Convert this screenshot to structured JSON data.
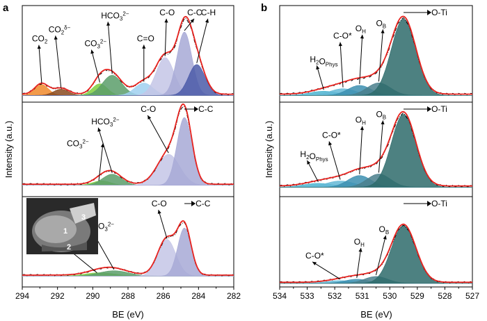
{
  "figure": {
    "panels": [
      {
        "letter": "a",
        "ylabel": "Intensity (a.u.)",
        "xlabel": "BE (eV)"
      },
      {
        "letter": "b",
        "ylabel": "Intensity (a.u.)",
        "xlabel": "BE (eV)"
      }
    ],
    "inset_labels": [
      "1",
      "2",
      "3"
    ]
  },
  "colors": {
    "envelope": "#e8231f",
    "raw": "#000000",
    "co2": "#f08a2b",
    "co2_delta": "#8a4a1e",
    "co3": "#7fcf3e",
    "hco3": "#5a9e6a",
    "c_eq_o": "#9fd0f0",
    "c_o": "#c4c6e6",
    "c_c": "#a7a9d6",
    "c_h": "#4b5aa8",
    "o_ti": "#2e6b6b",
    "o_b": "#4a7f8c",
    "o_h": "#3c8fb0",
    "c_o_star": "#64b8d6",
    "h2o": "#4cb5d0"
  },
  "chart_data": [
    {
      "type": "area",
      "id": "a-top",
      "panel": "a",
      "xlabel": "BE (eV)",
      "ylabel": "Intensity (a.u.)",
      "xlim": [
        294,
        282
      ],
      "xticks": [
        294,
        292,
        290,
        288,
        286,
        284,
        282
      ],
      "x_reversed": true,
      "series": [
        {
          "name": "CO2",
          "label_parts": [
            [
              "CO",
              ""
            ],
            [
              "2",
              "sub"
            ]
          ],
          "center": 292.9,
          "height": 0.14,
          "fwhm": 0.9,
          "color_key": "co2"
        },
        {
          "name": "CO2δ-",
          "label_parts": [
            [
              "CO",
              ""
            ],
            [
              "2",
              "sub"
            ],
            [
              "δ−",
              "sup"
            ]
          ],
          "center": 291.8,
          "height": 0.08,
          "fwhm": 1.0,
          "color_key": "co2_delta"
        },
        {
          "name": "CO32-",
          "label_parts": [
            [
              "CO",
              ""
            ],
            [
              "3",
              "sub"
            ],
            [
              "2−",
              "sup"
            ]
          ],
          "center": 289.6,
          "height": 0.15,
          "fwhm": 1.0,
          "color_key": "co3"
        },
        {
          "name": "HCO32-",
          "label_parts": [
            [
              "HCO",
              ""
            ],
            [
              "3",
              "sub"
            ],
            [
              "2−",
              "sup"
            ]
          ],
          "center": 288.9,
          "height": 0.26,
          "fwhm": 1.3,
          "color_key": "hco3"
        },
        {
          "name": "C=O",
          "label_parts": [
            [
              "C=O",
              ""
            ]
          ],
          "center": 287.1,
          "height": 0.16,
          "fwhm": 1.2,
          "color_key": "c_eq_o"
        },
        {
          "name": "C-O",
          "label_parts": [
            [
              "C-O",
              ""
            ]
          ],
          "center": 285.9,
          "height": 0.49,
          "fwhm": 1.2,
          "color_key": "c_o"
        },
        {
          "name": "C-C",
          "label_parts": [
            [
              "C-C",
              ""
            ]
          ],
          "center": 284.8,
          "height": 0.82,
          "fwhm": 1.0,
          "color_key": "c_c"
        },
        {
          "name": "C-H",
          "label_parts": [
            [
              "C-H",
              ""
            ]
          ],
          "center": 284.1,
          "height": 0.4,
          "fwhm": 1.1,
          "color_key": "c_h"
        }
      ]
    },
    {
      "type": "area",
      "id": "a-mid",
      "panel": "a",
      "xlim": [
        294,
        282
      ],
      "x_reversed": true,
      "series": [
        {
          "name": "CO32-",
          "label_parts": [
            [
              "CO",
              ""
            ],
            [
              "3",
              "sub"
            ],
            [
              "2−",
              "sup"
            ]
          ],
          "center": 289.5,
          "height": 0.06,
          "fwhm": 1.2,
          "color_key": "co3"
        },
        {
          "name": "HCO32-",
          "label_parts": [
            [
              "HCO",
              ""
            ],
            [
              "3",
              "sub"
            ],
            [
              "2−",
              "sup"
            ]
          ],
          "center": 288.9,
          "height": 0.15,
          "fwhm": 1.3,
          "color_key": "hco3"
        },
        {
          "name": "C-O",
          "label_parts": [
            [
              "C-O",
              ""
            ]
          ],
          "center": 285.7,
          "height": 0.42,
          "fwhm": 1.5,
          "color_key": "c_o"
        },
        {
          "name": "C-C",
          "label_parts": [
            [
              "C-C",
              ""
            ]
          ],
          "center": 284.8,
          "height": 0.92,
          "fwhm": 1.0,
          "color_key": "c_c"
        }
      ]
    },
    {
      "type": "area",
      "id": "a-bot",
      "panel": "a",
      "xlim": [
        294,
        282
      ],
      "x_reversed": true,
      "series": [
        {
          "name": "CO32-",
          "label_parts": [
            [
              "CO",
              ""
            ],
            [
              "3",
              "sub"
            ],
            [
              "2−",
              "sup"
            ]
          ],
          "center": 289.6,
          "height": 0.05,
          "fwhm": 2.0,
          "color_key": "co3"
        },
        {
          "name": "HCO32-",
          "label_parts": [
            [
              "HCO",
              ""
            ],
            [
              "3",
              "sub"
            ],
            [
              "2−",
              "sup"
            ]
          ],
          "center": 288.8,
          "height": 0.08,
          "fwhm": 2.0,
          "color_key": "hco3"
        },
        {
          "name": "C-O",
          "label_parts": [
            [
              "C-O",
              ""
            ]
          ],
          "center": 285.8,
          "height": 0.55,
          "fwhm": 1.2,
          "color_key": "c_o"
        },
        {
          "name": "C-C",
          "label_parts": [
            [
              "C-C",
              ""
            ]
          ],
          "center": 284.8,
          "height": 0.72,
          "fwhm": 0.9,
          "color_key": "c_c"
        }
      ]
    },
    {
      "type": "area",
      "id": "b-top",
      "panel": "b",
      "xlabel": "BE (eV)",
      "ylabel": "Intensity (a.u.)",
      "xlim": [
        534,
        527
      ],
      "xticks": [
        534,
        533,
        532,
        531,
        530,
        529,
        528,
        527
      ],
      "x_reversed": true,
      "series": [
        {
          "name": "H2OPhys",
          "label_parts": [
            [
              "H",
              ""
            ],
            [
              "2",
              "sub"
            ],
            [
              "O",
              ""
            ],
            [
              "Phys",
              "sub"
            ]
          ],
          "center": 532.4,
          "height": 0.05,
          "fwhm": 1.2,
          "color_key": "h2o"
        },
        {
          "name": "C-O*",
          "label_parts": [
            [
              "C-O*",
              ""
            ]
          ],
          "center": 531.7,
          "height": 0.08,
          "fwhm": 1.1,
          "color_key": "c_o_star"
        },
        {
          "name": "OH",
          "label_parts": [
            [
              "O",
              ""
            ],
            [
              "H",
              "sub"
            ]
          ],
          "center": 531.1,
          "height": 0.12,
          "fwhm": 1.0,
          "color_key": "o_h"
        },
        {
          "name": "OB",
          "label_parts": [
            [
              "O",
              ""
            ],
            [
              "B",
              "sub"
            ]
          ],
          "center": 530.4,
          "height": 0.15,
          "fwhm": 1.0,
          "color_key": "o_b"
        },
        {
          "name": "O-Ti",
          "label_parts": [
            [
              "O-Ti",
              ""
            ]
          ],
          "center": 529.5,
          "height": 0.92,
          "fwhm": 1.05,
          "color_key": "o_ti"
        }
      ]
    },
    {
      "type": "area",
      "id": "b-mid",
      "panel": "b",
      "xlim": [
        534,
        527
      ],
      "x_reversed": true,
      "series": [
        {
          "name": "H2OPhys",
          "label_parts": [
            [
              "H",
              ""
            ],
            [
              "2",
              "sub"
            ],
            [
              "O",
              ""
            ],
            [
              "Phys",
              "sub"
            ]
          ],
          "center": 532.6,
          "height": 0.05,
          "fwhm": 1.3,
          "color_key": "h2o"
        },
        {
          "name": "C-O*",
          "label_parts": [
            [
              "C-O*",
              ""
            ]
          ],
          "center": 531.8,
          "height": 0.08,
          "fwhm": 1.2,
          "color_key": "c_o_star"
        },
        {
          "name": "OH",
          "label_parts": [
            [
              "O",
              ""
            ],
            [
              "H",
              "sub"
            ]
          ],
          "center": 531.1,
          "height": 0.15,
          "fwhm": 1.0,
          "color_key": "o_h"
        },
        {
          "name": "OB",
          "label_parts": [
            [
              "O",
              ""
            ],
            [
              "B",
              "sub"
            ]
          ],
          "center": 530.4,
          "height": 0.17,
          "fwhm": 1.0,
          "color_key": "o_b"
        },
        {
          "name": "O-Ti",
          "label_parts": [
            [
              "O-Ti",
              ""
            ]
          ],
          "center": 529.5,
          "height": 0.94,
          "fwhm": 1.05,
          "color_key": "o_ti"
        }
      ]
    },
    {
      "type": "area",
      "id": "b-bot",
      "panel": "b",
      "xlim": [
        534,
        527
      ],
      "x_reversed": true,
      "series": [
        {
          "name": "C-O*",
          "label_parts": [
            [
              "C-O*",
              ""
            ]
          ],
          "center": 531.8,
          "height": 0.04,
          "fwhm": 1.2,
          "color_key": "c_o_star"
        },
        {
          "name": "OH",
          "label_parts": [
            [
              "O",
              ""
            ],
            [
              "H",
              "sub"
            ]
          ],
          "center": 531.2,
          "height": 0.06,
          "fwhm": 1.0,
          "color_key": "o_h"
        },
        {
          "name": "OB",
          "label_parts": [
            [
              "O",
              ""
            ],
            [
              "B",
              "sub"
            ]
          ],
          "center": 530.5,
          "height": 0.1,
          "fwhm": 1.0,
          "color_key": "o_b"
        },
        {
          "name": "O-Ti",
          "label_parts": [
            [
              "O-Ti",
              ""
            ]
          ],
          "center": 529.5,
          "height": 0.84,
          "fwhm": 1.05,
          "color_key": "o_ti"
        }
      ]
    }
  ]
}
